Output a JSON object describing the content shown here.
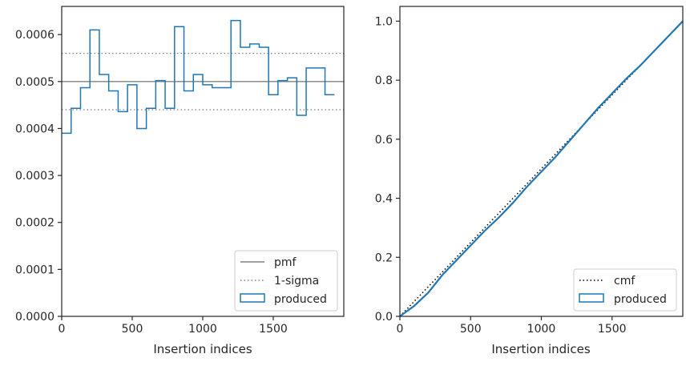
{
  "chart_data": [
    {
      "type": "line",
      "title": "",
      "xlabel": "Insertion indices",
      "ylabel": "",
      "xlim": [
        0,
        2000
      ],
      "ylim": [
        0,
        0.00066
      ],
      "xticks": [
        0,
        500,
        1000,
        1500
      ],
      "xtick_labels": [
        "0",
        "500",
        "1000",
        "1500"
      ],
      "yticks": [
        0,
        0.0001,
        0.0002,
        0.0003,
        0.0004,
        0.0005,
        0.0006
      ],
      "ytick_labels": [
        "0.0000",
        "0.0001",
        "0.0002",
        "0.0003",
        "0.0004",
        "0.0005",
        "0.0006"
      ],
      "grid": false,
      "legend_position": "lower-right",
      "reference_lines": [
        {
          "name": "pmf",
          "y": 0.0005,
          "style": "solid",
          "color": "#808080"
        },
        {
          "name": "1-sigma",
          "y": 0.00056,
          "style": "dotted",
          "color": "#808080"
        },
        {
          "name": "1-sigma",
          "y": 0.00044,
          "style": "dotted",
          "color": "#808080"
        }
      ],
      "series": [
        {
          "name": "produced",
          "kind": "step-histogram",
          "color": "#1f77b4",
          "bin_width": 66.67,
          "values": [
            0.00039,
            0.000443,
            0.000487,
            0.00061,
            0.000515,
            0.00048,
            0.000436,
            0.000493,
            0.0004,
            0.000443,
            0.000502,
            0.000443,
            0.000617,
            0.00048,
            0.000515,
            0.000493,
            0.000487,
            0.000487,
            0.00063,
            0.000573,
            0.00058,
            0.000573,
            0.000472,
            0.000502,
            0.000508,
            0.000428,
            0.000529,
            0.000529,
            0.000472
          ]
        }
      ],
      "legend": [
        "pmf",
        "1-sigma",
        "produced"
      ]
    },
    {
      "type": "line",
      "title": "",
      "xlabel": "Insertion indices",
      "ylabel": "",
      "xlim": [
        0,
        2000
      ],
      "ylim": [
        0,
        1.05
      ],
      "xticks": [
        0,
        500,
        1000,
        1500
      ],
      "xtick_labels": [
        "0",
        "500",
        "1000",
        "1500"
      ],
      "yticks": [
        0,
        0.2,
        0.4,
        0.6,
        0.8,
        1.0
      ],
      "ytick_labels": [
        "0.0",
        "0.2",
        "0.4",
        "0.6",
        "0.8",
        "1.0"
      ],
      "grid": false,
      "legend_position": "lower-right",
      "series": [
        {
          "name": "cmf",
          "style": "dotted",
          "color": "#000000",
          "x": [
            0,
            2000
          ],
          "y": [
            0,
            1.0
          ]
        },
        {
          "name": "produced",
          "style": "solid",
          "color": "#1f77b4",
          "x": [
            0,
            100,
            200,
            300,
            400,
            500,
            600,
            700,
            800,
            900,
            1000,
            1100,
            1200,
            1300,
            1400,
            1500,
            1600,
            1700,
            1800,
            1900,
            2000
          ],
          "y": [
            0,
            0.035,
            0.08,
            0.14,
            0.19,
            0.24,
            0.29,
            0.335,
            0.385,
            0.44,
            0.49,
            0.54,
            0.595,
            0.65,
            0.705,
            0.755,
            0.805,
            0.85,
            0.9,
            0.95,
            1.0
          ]
        }
      ],
      "legend": [
        "cmf",
        "produced"
      ]
    }
  ]
}
